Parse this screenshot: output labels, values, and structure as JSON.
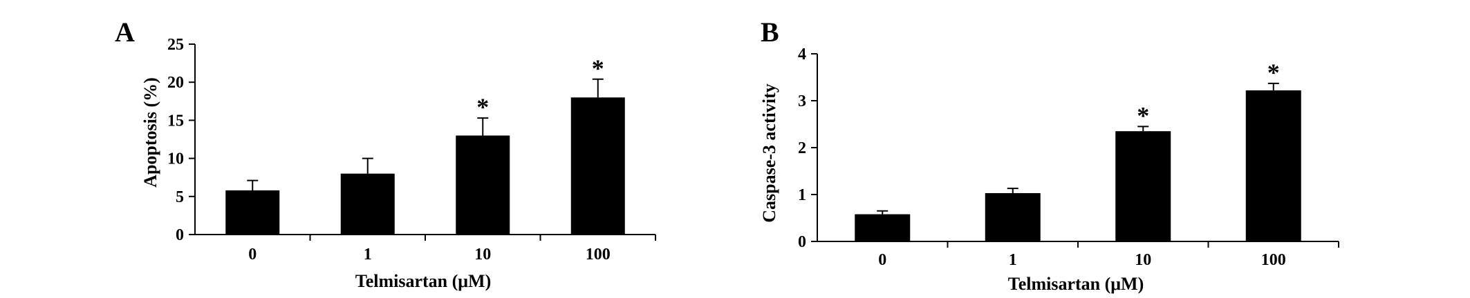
{
  "chart_data": [
    {
      "type": "bar",
      "panel_label": "A",
      "categories": [
        "0",
        "1",
        "10",
        "100"
      ],
      "values": [
        5.8,
        8.0,
        13.0,
        18.0
      ],
      "errors": [
        1.3,
        2.0,
        2.3,
        2.4
      ],
      "significance": [
        "",
        "",
        "*",
        "*"
      ],
      "xlabel": "Telmisartan (μM)",
      "ylabel": "Apoptosis (%)",
      "ylim": [
        0,
        25
      ],
      "yticks": [
        "0",
        "5",
        "10",
        "15",
        "20",
        "25"
      ],
      "grid": false,
      "bar_color": "#000000"
    },
    {
      "type": "bar",
      "panel_label": "B",
      "categories": [
        "0",
        "1",
        "10",
        "100"
      ],
      "values": [
        0.58,
        1.03,
        2.35,
        3.22
      ],
      "errors": [
        0.07,
        0.1,
        0.1,
        0.15
      ],
      "significance": [
        "",
        "",
        "*",
        "*"
      ],
      "xlabel": "Telmisartan (μM)",
      "ylabel": "Caspase-3 activity",
      "ylim": [
        0,
        4
      ],
      "yticks": [
        "0",
        "1",
        "2",
        "3",
        "4"
      ],
      "grid": false,
      "bar_color": "#000000"
    }
  ]
}
